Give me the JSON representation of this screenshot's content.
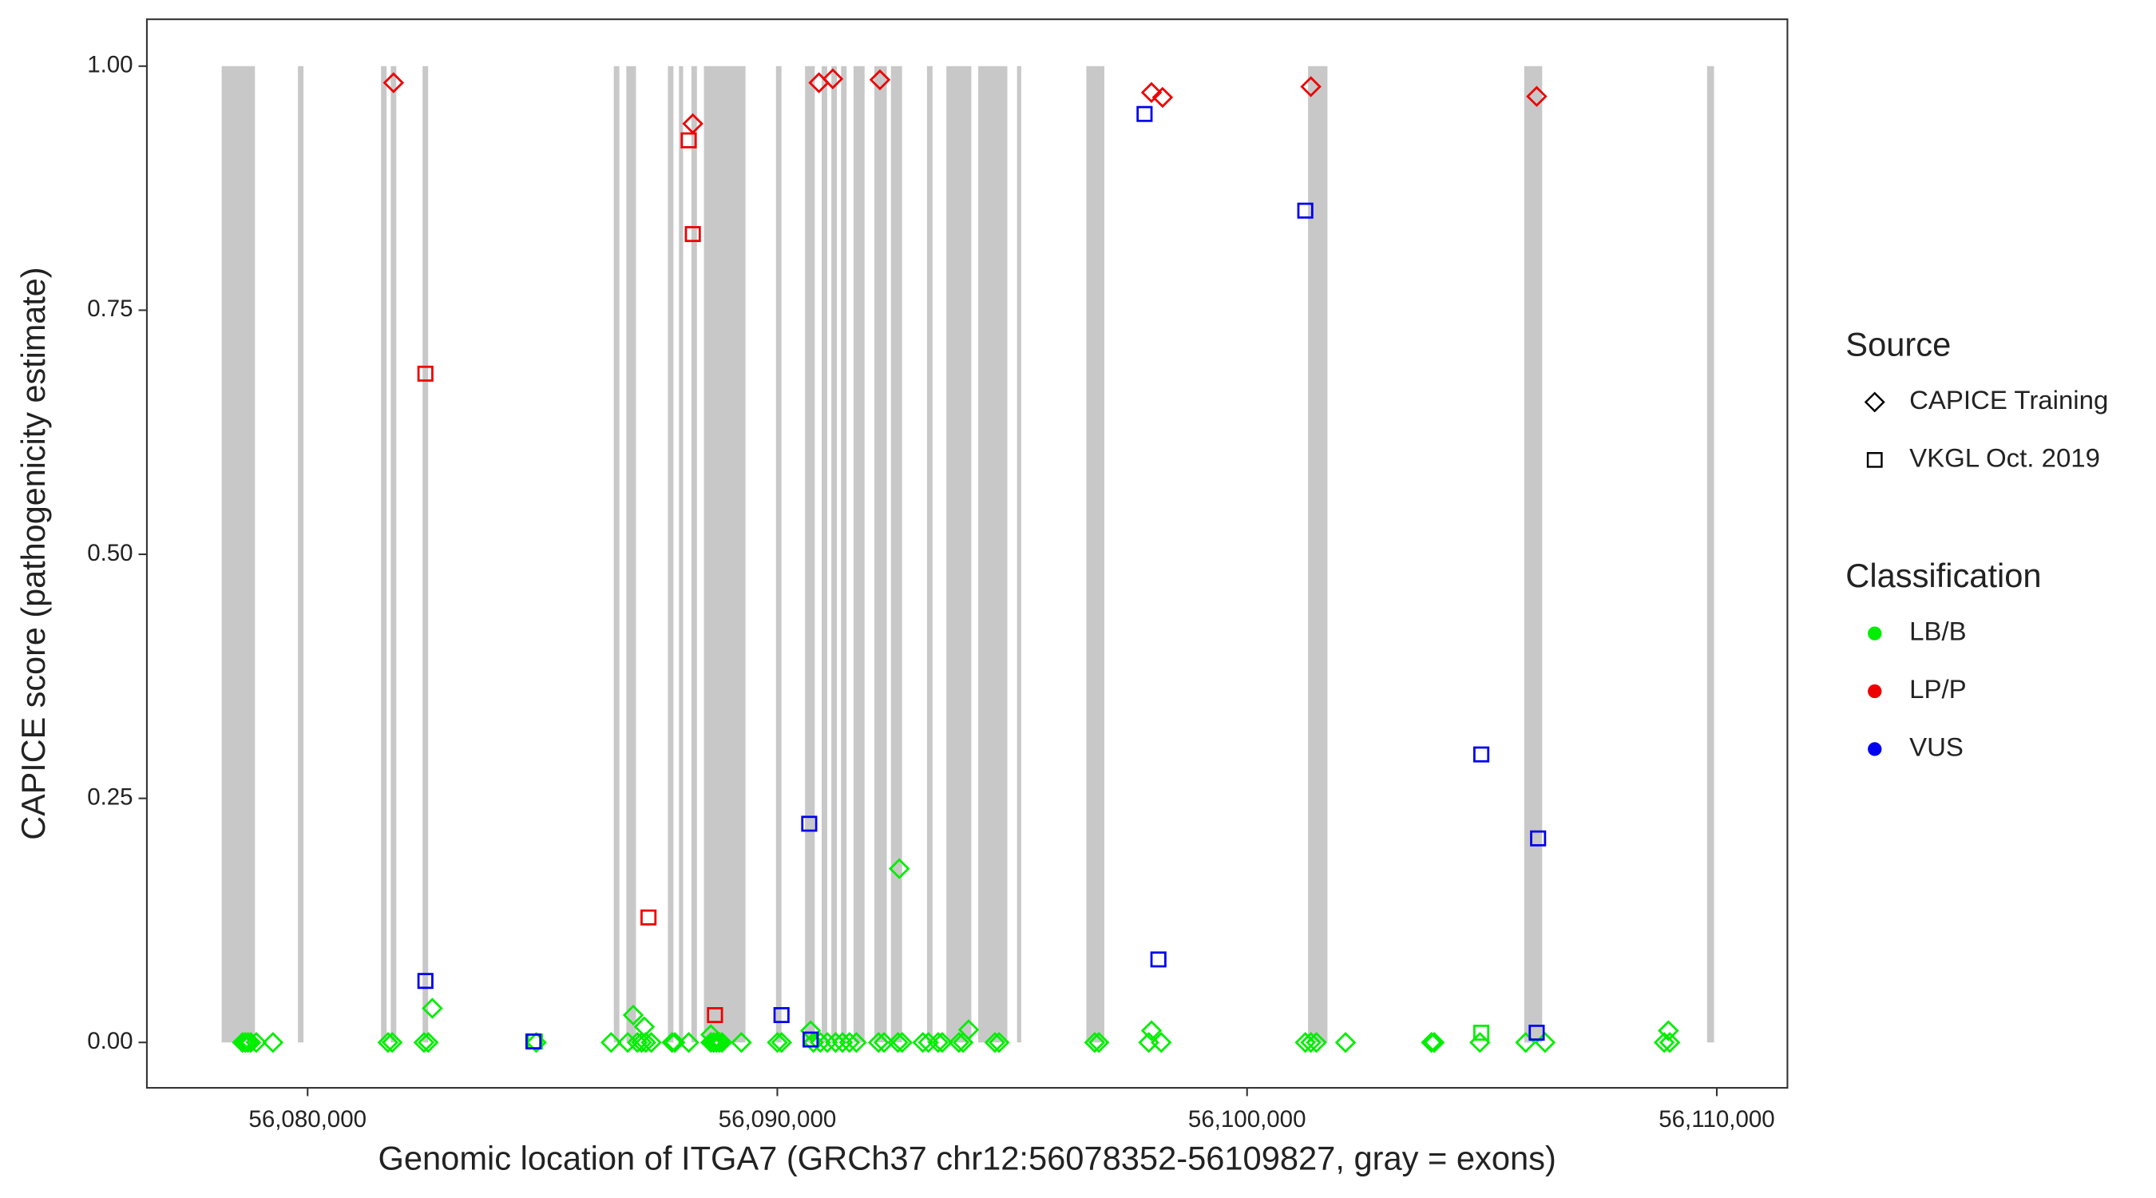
{
  "chart_data": {
    "type": "scatter",
    "x_label": "Genomic location of ITGA7 (GRCh37 chr12:56078352-56109827, gray = exons)",
    "y_label": "CAPICE score (pathogenicity estimate)",
    "xlim": [
      56076578,
      56111504
    ],
    "ylim": [
      -0.0465,
      1.048
    ],
    "xticks": [
      {
        "value": 56080000,
        "label": "56,080,000"
      },
      {
        "value": 56090000,
        "label": "56,090,000"
      },
      {
        "value": 56100000,
        "label": "56,100,000"
      },
      {
        "value": 56110000,
        "label": "56,110,000"
      }
    ],
    "yticks": [
      {
        "value": 0,
        "label": "0.00"
      },
      {
        "value": 0.25,
        "label": "0.25"
      },
      {
        "value": 0.5,
        "label": "0.50"
      },
      {
        "value": 0.75,
        "label": "0.75"
      },
      {
        "value": 1,
        "label": "1.00"
      }
    ],
    "exon_color": "#c8c8c8",
    "exons": [
      [
        56078171,
        56078879
      ],
      [
        56079794,
        56079912
      ],
      [
        56081563,
        56081681
      ],
      [
        56081770,
        56081888
      ],
      [
        56082448,
        56082566
      ],
      [
        56086519,
        56086637
      ],
      [
        56086785,
        56086991
      ],
      [
        56087670,
        56087788
      ],
      [
        56087906,
        56087994
      ],
      [
        56088171,
        56088289
      ],
      [
        56088437,
        56089322
      ],
      [
        56089971,
        56090088
      ],
      [
        56090590,
        56090797
      ],
      [
        56090944,
        56091062
      ],
      [
        56091150,
        56091268
      ],
      [
        56091357,
        56091475
      ],
      [
        56091622,
        56091858
      ],
      [
        56092065,
        56092330
      ],
      [
        56092419,
        56092655
      ],
      [
        56093186,
        56093304
      ],
      [
        56093599,
        56094130
      ],
      [
        56094277,
        56094897
      ],
      [
        56095103,
        56095192
      ],
      [
        56096578,
        56096962
      ],
      [
        56101298,
        56101711
      ],
      [
        56105900,
        56106283
      ],
      [
        56109794,
        56109941
      ]
    ],
    "legend": {
      "source": {
        "title": "Source",
        "entries": [
          {
            "name": "CAPICE Training",
            "shape": "diamond"
          },
          {
            "name": "VKGL Oct. 2019",
            "shape": "square"
          }
        ]
      },
      "classification": {
        "title": "Classification",
        "entries": [
          {
            "name": "LB/B",
            "color": "#00ee00"
          },
          {
            "name": "LP/P",
            "color": "#ee0000"
          },
          {
            "name": "VUS",
            "color": "#0000ee"
          }
        ]
      }
    },
    "series": [
      {
        "source": "CAPICE Training",
        "classification": "LB/B",
        "x": [
          56078613,
          56078672,
          56078731,
          56078790,
          56078908,
          56079262,
          56081711,
          56081800,
          56082478,
          56082567,
          56084868,
          56086461,
          56086815,
          56087021,
          56087110,
          56087198,
          56087316,
          56087759,
          56087818,
          56088113,
          56088585,
          56088644,
          56088703,
          56088762,
          56088821,
          56089234,
          56090001,
          56090089,
          56090768,
          56090915,
          56091063,
          56091240,
          56091387,
          56091535,
          56091682,
          56092154,
          56092272,
          56092567,
          56092656,
          56093098,
          56093216,
          56093423,
          56093511,
          56093865,
          56093954,
          56094632,
          56094720,
          56096756,
          56096845,
          56097907,
          56098172,
          56101240,
          56101358,
          56101476,
          56102096,
          56103925,
          56103984,
          56104957,
          56105931,
          56106344,
          56108881,
          56108999,
          56092597,
          56082655,
          56086933,
          56087169,
          56094072,
          56097966,
          56108970,
          56090709,
          56088585
        ],
        "values": [
          0,
          0,
          0,
          0,
          0,
          0,
          0,
          0,
          0,
          0,
          0,
          0,
          0,
          0,
          0,
          0,
          0,
          0,
          0,
          0,
          0,
          0,
          0,
          0,
          0,
          0,
          0,
          0,
          0,
          0,
          0,
          0,
          0,
          0,
          0,
          0,
          0,
          0,
          0,
          0,
          0,
          0,
          0,
          0,
          0,
          0,
          0,
          0,
          0,
          0,
          0,
          0,
          0,
          0,
          0,
          0,
          0,
          0,
          0,
          0,
          0,
          0,
          0.178,
          0.035,
          0.028,
          0.016,
          0.013,
          0.012,
          0.012,
          0.012,
          0.008
        ]
      },
      {
        "source": "CAPICE Training",
        "classification": "LP/P",
        "x": [
          56081829,
          56088201,
          56090886,
          56091181,
          56092184,
          56097965,
          56098201,
          56101358,
          56106166
        ],
        "values": [
          0.983,
          0.941,
          0.983,
          0.987,
          0.986,
          0.973,
          0.968,
          0.979,
          0.969
        ]
      },
      {
        "source": "VKGL Oct. 2019",
        "classification": "LB/B",
        "x": [
          56104987,
          56084838
        ],
        "values": [
          0.01,
          0.001
        ]
      },
      {
        "source": "VKGL Oct. 2019",
        "classification": "LP/P",
        "x": [
          56088113,
          56088201,
          56082508,
          56087257,
          56088673
        ],
        "values": [
          0.924,
          0.828,
          0.685,
          0.128,
          0.028
        ]
      },
      {
        "source": "VKGL Oct. 2019",
        "classification": "VUS",
        "x": [
          56082508,
          56097818,
          56101240,
          56104987,
          56106196,
          56098113,
          56090679,
          56090089,
          56090708,
          56106166,
          56084808
        ],
        "values": [
          0.063,
          0.951,
          0.852,
          0.295,
          0.209,
          0.085,
          0.224,
          0.028,
          0.003,
          0.01,
          0.001
        ]
      }
    ]
  }
}
